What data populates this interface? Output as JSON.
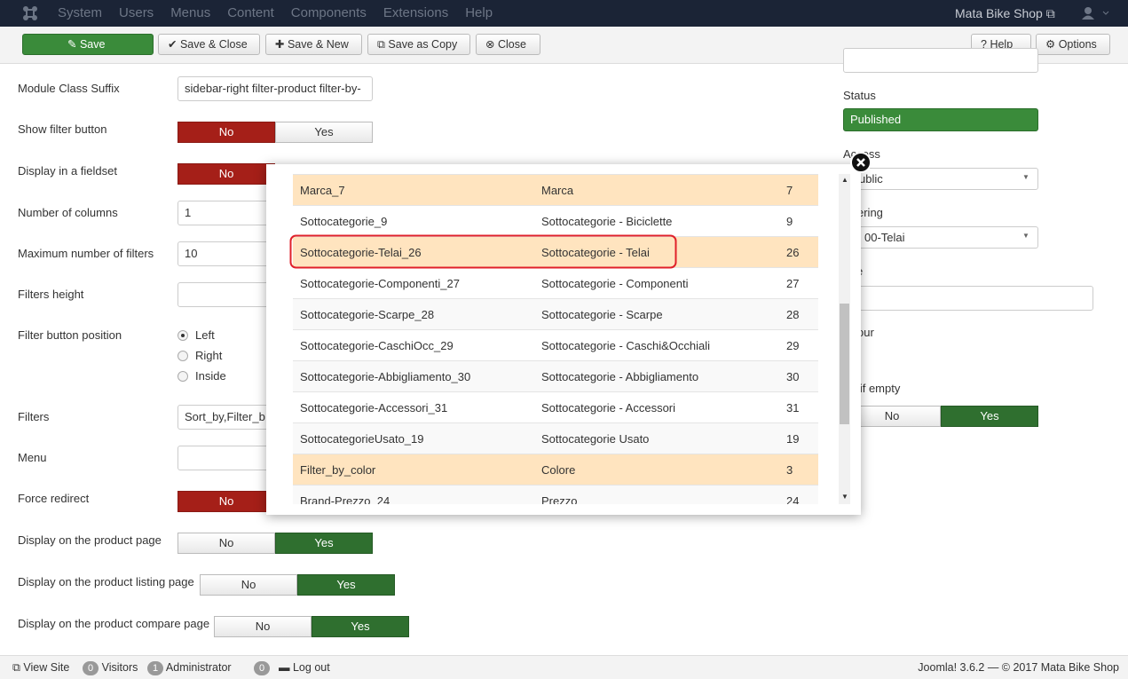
{
  "navbar": {
    "menu": [
      "System",
      "Users",
      "Menus",
      "Content",
      "Components",
      "Extensions",
      "Help"
    ],
    "site": "Mata Bike Shop"
  },
  "toolbar": {
    "buttons": [
      "Save",
      "Save & Close",
      "Save & New",
      "Save as Copy",
      "Close"
    ],
    "right_buttons": [
      "Help",
      "Options"
    ]
  },
  "form": {
    "fields": [
      {
        "label": "Module Class Suffix",
        "control": "input",
        "value": "sidebar-right filter-product filter-by-"
      },
      {
        "label": "Show filter button",
        "control": "toggle",
        "options": [
          "No",
          "Yes"
        ],
        "selected": 0
      },
      {
        "label": "Display in a fieldset",
        "control": "toggle",
        "options": [
          "No"
        ],
        "selected": 0
      },
      {
        "label": "Number of columns",
        "control": "input",
        "value": "1"
      },
      {
        "label": "Maximum number of filters",
        "control": "input",
        "value": "10"
      },
      {
        "label": "Filters height",
        "control": "input"
      },
      {
        "label": "Filter button position",
        "control": "radio",
        "options": [
          "Left",
          "Right",
          "Inside"
        ],
        "selected": 0
      },
      {
        "label": "Filters",
        "control": "input",
        "value": "Sort_by,Filter_b"
      },
      {
        "label": "Menu",
        "control": "input"
      },
      {
        "label": "Force redirect",
        "control": "toggle",
        "options": [
          "No"
        ],
        "selected": 0
      },
      {
        "label": "Display on the product page",
        "control": "toggle",
        "options": [
          "No",
          "Yes"
        ],
        "selected": 1
      },
      {
        "label": "Display on the product listing page",
        "control": "toggle",
        "options": [
          "No",
          "Yes"
        ],
        "selected": 1
      },
      {
        "label": "Display on the product compare page",
        "control": "toggle",
        "options": [
          "No",
          "Yes"
        ],
        "selected": 1
      }
    ]
  },
  "sidebar": {
    "status_label": "Status",
    "status_value": "Published",
    "access_label": "Access",
    "access_value": "ublic",
    "ordering_label": "ering",
    "ordering_value": "00-Telai",
    "note_label": "e",
    "colour_label": "our",
    "hide_label": "e if empty",
    "hide_options": [
      "No",
      "Yes"
    ],
    "hide_selected": 1
  },
  "modal": {
    "rows": [
      [
        "Marca_7",
        "Marca",
        7
      ],
      [
        "Sottocategorie_9",
        "Sottocategorie - Biciclette",
        9
      ],
      [
        "Sottocategorie-Telai_26",
        "Sottocategorie - Telai",
        26
      ],
      [
        "Sottocategorie-Componenti_27",
        "Sottocategorie - Componenti",
        27
      ],
      [
        "Sottocategorie-Scarpe_28",
        "Sottocategorie - Scarpe",
        28
      ],
      [
        "Sottocategorie-CaschiOcc_29",
        "Sottocategorie - Caschi&Occhiali",
        29
      ],
      [
        "Sottocategorie-Abbigliamento_30",
        "Sottocategorie - Abbigliamento",
        30
      ],
      [
        "Sottocategorie-Accessori_31",
        "Sottocategorie - Accessori",
        31
      ],
      [
        "SottocategorieUsato_19",
        "Sottocategorie Usato",
        19
      ],
      [
        "Filter_by_color",
        "Colore",
        3
      ],
      [
        "Brand-Prezzo_24",
        "Prezzo",
        24
      ]
    ],
    "highlighted": [
      0,
      2,
      9
    ],
    "outlined": 2
  },
  "footer": {
    "view_site": "View Site",
    "visitors_count": 0,
    "visitors": "Visitors",
    "admin_count": 1,
    "admin": "Administrator",
    "messages_count": 0,
    "logout": "Log out",
    "version": "Joomla! 3.6.2 — © 2017 Mata Bike Shop"
  }
}
